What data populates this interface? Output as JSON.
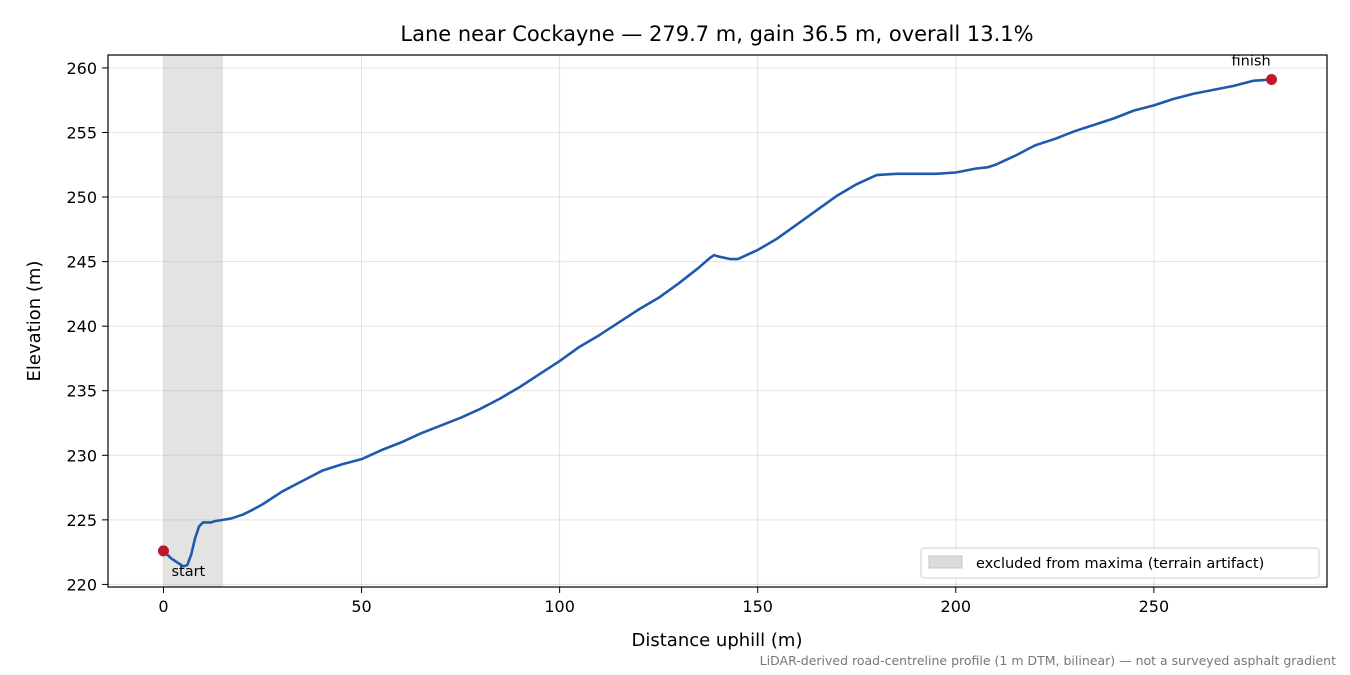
{
  "chart_data": {
    "type": "line",
    "title": "Lane near Cockayne — 279.7 m, gain 36.5 m, overall 13.1%",
    "xlabel": "Distance uphill (m)",
    "ylabel": "Elevation (m)",
    "xlim": [
      -14,
      293.7
    ],
    "ylim": [
      219.8,
      261.0
    ],
    "xticks": [
      0,
      50,
      100,
      150,
      200,
      250
    ],
    "yticks": [
      220,
      225,
      230,
      235,
      240,
      245,
      250,
      255,
      260
    ],
    "grid": true,
    "legend_position": "lower-right",
    "colors": {
      "line": "#1f5aad",
      "marker": "#c0182a",
      "band": "#dcdcd9"
    },
    "excluded_band": {
      "x": [
        0,
        15
      ],
      "label": "excluded from maxima (terrain artifact)"
    },
    "series": [
      {
        "x": [
          0,
          2,
          4,
          5,
          6,
          7,
          8,
          9,
          10,
          11,
          12,
          13,
          15,
          17,
          20,
          22,
          25,
          30,
          35,
          40,
          45,
          50,
          55,
          60,
          65,
          70,
          75,
          80,
          85,
          90,
          95,
          100,
          105,
          110,
          115,
          120,
          125,
          130,
          135,
          138,
          139,
          140,
          143,
          145,
          150,
          155,
          160,
          165,
          170,
          175,
          180,
          185,
          190,
          195,
          200,
          205,
          208,
          210,
          215,
          220,
          225,
          230,
          235,
          240,
          245,
          250,
          255,
          260,
          265,
          270,
          275,
          279.7
        ],
        "y": [
          222.6,
          222.0,
          221.6,
          221.4,
          221.5,
          222.3,
          223.6,
          224.5,
          224.8,
          224.8,
          224.8,
          224.9,
          225.0,
          225.1,
          225.4,
          225.7,
          226.2,
          227.2,
          228.0,
          228.8,
          229.3,
          229.7,
          230.4,
          231.0,
          231.7,
          232.3,
          232.9,
          233.6,
          234.4,
          235.3,
          236.3,
          237.3,
          238.4,
          239.3,
          240.3,
          241.3,
          242.2,
          243.3,
          244.5,
          245.3,
          245.5,
          245.4,
          245.2,
          245.2,
          245.9,
          246.8,
          247.9,
          249.0,
          250.1,
          251.0,
          251.7,
          251.8,
          251.8,
          251.8,
          251.9,
          252.2,
          252.3,
          252.5,
          253.2,
          254.0,
          254.5,
          255.1,
          255.6,
          256.1,
          256.7,
          257.1,
          257.6,
          258.0,
          258.3,
          258.6,
          259.0,
          259.1
        ]
      }
    ],
    "markers": [
      {
        "label": "start",
        "x": 0,
        "y": 222.6
      },
      {
        "label": "finish",
        "x": 279.7,
        "y": 259.1
      }
    ],
    "footnote": "LiDAR-derived road-centreline profile (1 m DTM, bilinear) — not a surveyed asphalt gradient"
  }
}
